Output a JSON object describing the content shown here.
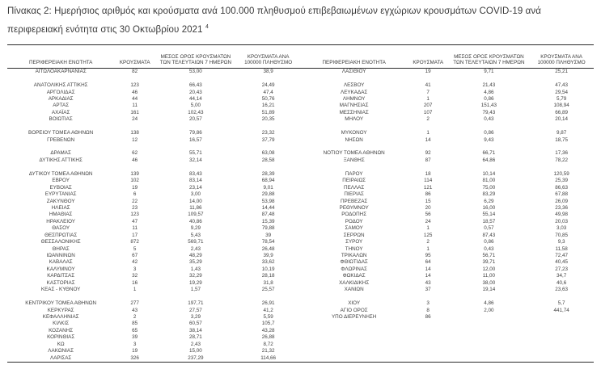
{
  "header": {
    "title": "Πίνακας 2:  Ημερήσιος αριθμός και κρούσματα ανά 100.000 πληθυσμού επιβεβαιωμένων εγχώριων κρουσμάτων COVID-19 ανά περιφερειακή ενότητα στις 30 Οκτωβρίου 2021",
    "footnote_marker": "4"
  },
  "columns": [
    "ΠΕΡΙΦΕΡΕΙΑΚΗ ΕΝΟΤΗΤΑ",
    "ΚΡΟΥΣΜΑΤΑ",
    "ΜΕΣΟΣ ΟΡΟΣ ΚΡΟΥΣΜΑΤΩΝ ΤΩΝ ΤΕΛΕΥΤΑΙΩΝ 7 ΗΜΕΡΩΝ",
    "ΚΡΟΥΣΜΑΤΑ ΑΝΑ 100000 ΠΛΗΘΥΣΜΟ"
  ],
  "tables": [
    {
      "rows": [
        [
          "ΑΙΤΩΛΟΑΚΑΡΝΑΝΙΑΣ",
          "82",
          "53,00",
          "38,9"
        ],
        null,
        [
          "ΑΝΑΤΟΛΙΚΗΣ ΑΤΤΙΚΗΣ",
          "123",
          "66,43",
          "24,49"
        ],
        [
          "ΑΡΓΟΛΙΔΑΣ",
          "46",
          "20,43",
          "47,4"
        ],
        [
          "ΑΡΚΑΔΙΑΣ",
          "44",
          "44,14",
          "50,76"
        ],
        [
          "ΑΡΤΑΣ",
          "11",
          "5,00",
          "16,21"
        ],
        [
          "ΑΧΑΪΑΣ",
          "161",
          "102,43",
          "51,89"
        ],
        [
          "ΒΟΙΩΤΙΑΣ",
          "24",
          "20,57",
          "20,35"
        ],
        null,
        [
          "ΒΟΡΕΙΟΥ ΤΟΜΕΑ ΑΘΗΝΩΝ",
          "138",
          "79,86",
          "23,32"
        ],
        [
          "ΓΡΕΒΕΝΩΝ",
          "12",
          "16,57",
          "37,79"
        ],
        null,
        [
          "ΔΡΑΜΑΣ",
          "62",
          "55,71",
          "63,08"
        ],
        [
          "ΔΥΤΙΚΗΣ ΑΤΤΙΚΗΣ",
          "46",
          "32,14",
          "28,58"
        ],
        null,
        [
          "ΔΥΤΙΚΟΥ ΤΟΜΕΑ ΑΘΗΝΩΝ",
          "139",
          "83,43",
          "28,39"
        ],
        [
          "ΕΒΡΟΥ",
          "102",
          "83,14",
          "68,94"
        ],
        [
          "ΕΥΒΟΙΑΣ",
          "19",
          "23,14",
          "9,01"
        ],
        [
          "ΕΥΡΥΤΑΝΙΑΣ",
          "6",
          "3,00",
          "29,88"
        ],
        [
          "ΖΑΚΥΝΘΟΥ",
          "22",
          "14,00",
          "53,98"
        ],
        [
          "ΗΛΕΙΑΣ",
          "23",
          "11,86",
          "14,44"
        ],
        [
          "ΗΜΑΘΙΑΣ",
          "123",
          "109,57",
          "87,48"
        ],
        [
          "ΗΡΑΚΛΕΙΟΥ",
          "47",
          "40,86",
          "15,39"
        ],
        [
          "ΘΑΣΟΥ",
          "11",
          "9,29",
          "79,88"
        ],
        [
          "ΘΕΣΠΡΩΤΙΑΣ",
          "17",
          "5,43",
          "39"
        ],
        [
          "ΘΕΣΣΑΛΟΝΙΚΗΣ",
          "872",
          "569,71",
          "78,54"
        ],
        [
          "ΘΗΡΑΣ",
          "5",
          "2,43",
          "26,48"
        ],
        [
          "ΙΩΑΝΝΙΝΩΝ",
          "67",
          "48,29",
          "39,9"
        ],
        [
          "ΚΑΒΑΛΑΣ",
          "42",
          "35,29",
          "33,62"
        ],
        [
          "ΚΑΛΥΜΝΟΥ",
          "3",
          "1,43",
          "10,19"
        ],
        [
          "ΚΑΡΔΙΤΣΑΣ",
          "32",
          "32,29",
          "28,18"
        ],
        [
          "ΚΑΣΤΟΡΙΑΣ",
          "16",
          "19,29",
          "31,8"
        ],
        [
          "ΚΕΑΣ - ΚΥΘΝΟΥ",
          "1",
          "1,57",
          "25,57"
        ],
        null,
        [
          "ΚΕΝΤΡΙΚΟΥ ΤΟΜΕΑ ΑΘΗΝΩΝ",
          "277",
          "197,71",
          "26,91"
        ],
        [
          "ΚΕΡΚΥΡΑΣ",
          "43",
          "27,57",
          "41,2"
        ],
        [
          "ΚΕΦΑΛΛΗΝΙΑΣ",
          "2",
          "3,29",
          "5,59"
        ],
        [
          "ΚΙΛΚΙΣ",
          "85",
          "60,57",
          "105,7"
        ],
        [
          "ΚΟΖΑΝΗΣ",
          "65",
          "38,14",
          "43,28"
        ],
        [
          "ΚΟΡΙΝΘΙΑΣ",
          "39",
          "28,71",
          "26,88"
        ],
        [
          "ΚΩ",
          "3",
          "2,43",
          "8,72"
        ],
        [
          "ΛΑΚΩΝΙΑΣ",
          "19",
          "15,00",
          "21,32"
        ],
        [
          "ΛΑΡΙΣΑΣ",
          "326",
          "237,29",
          "114,66"
        ]
      ]
    },
    {
      "rows": [
        [
          "ΛΑΣΙΘΙΟΥ",
          "19",
          "9,71",
          "25,21"
        ],
        null,
        [
          "ΛΕΣΒΟΥ",
          "41",
          "21,43",
          "47,43"
        ],
        [
          "ΛΕΥΚΑΔΑΣ",
          "7",
          "4,86",
          "29,54"
        ],
        [
          "ΛΗΜΝΟΥ",
          "1",
          "0,86",
          "5,79"
        ],
        [
          "ΜΑΓΝΗΣΙΑΣ",
          "207",
          "151,43",
          "108,94"
        ],
        [
          "ΜΕΣΣΗΝΙΑΣ",
          "107",
          "79,43",
          "66,89"
        ],
        [
          "ΜΗΛΟΥ",
          "2",
          "0,43",
          "20,14"
        ],
        null,
        [
          "ΜΥΚΟΝΟΥ",
          "1",
          "0,86",
          "9,87"
        ],
        [
          "ΝΗΣΩΝ",
          "14",
          "9,43",
          "18,75"
        ],
        null,
        [
          "ΝΟΤΙΟΥ ΤΟΜΕΑ ΑΘΗΝΩΝ",
          "92",
          "66,71",
          "17,36"
        ],
        [
          "ΞΑΝΘΗΣ",
          "87",
          "64,86",
          "78,22"
        ],
        null,
        [
          "ΠΑΡΟΥ",
          "18",
          "10,14",
          "120,59"
        ],
        [
          "ΠΕΙΡΑΙΩΣ",
          "114",
          "81,00",
          "25,39"
        ],
        [
          "ΠΕΛΛΑΣ",
          "121",
          "75,00",
          "86,63"
        ],
        [
          "ΠΙΕΡΙΑΣ",
          "86",
          "83,29",
          "67,88"
        ],
        [
          "ΠΡΕΒΕΖΑΣ",
          "15",
          "6,29",
          "26,09"
        ],
        [
          "ΡΕΘΥΜΝΟΥ",
          "20",
          "16,00",
          "23,36"
        ],
        [
          "ΡΟΔΟΠΗΣ",
          "56",
          "55,14",
          "49,98"
        ],
        [
          "ΡΟΔΟΥ",
          "24",
          "18,57",
          "20,03"
        ],
        [
          "ΣΑΜΟΥ",
          "1",
          "0,57",
          "3,03"
        ],
        [
          "ΣΕΡΡΩΝ",
          "125",
          "87,43",
          "70,85"
        ],
        [
          "ΣΥΡΟΥ",
          "2",
          "0,86",
          "9,3"
        ],
        [
          "ΤΗΝΟΥ",
          "1",
          "0,43",
          "11,58"
        ],
        [
          "ΤΡΙΚΑΛΩΝ",
          "95",
          "56,71",
          "72,47"
        ],
        [
          "ΦΘΙΩΤΙΔΑΣ",
          "64",
          "39,71",
          "40,45"
        ],
        [
          "ΦΛΩΡΙΝΑΣ",
          "14",
          "12,00",
          "27,23"
        ],
        [
          "ΦΩΚΙΔΑΣ",
          "14",
          "11,00",
          "34,7"
        ],
        [
          "ΧΑΛΚΙΔΙΚΗΣ",
          "43",
          "38,00",
          "40,6"
        ],
        [
          "ΧΑΝΙΩΝ",
          "37",
          "19,14",
          "23,63"
        ],
        null,
        [
          "ΧΙΟΥ",
          "3",
          "4,86",
          "5,7"
        ],
        [
          "ΑΓΙΟ ΟΡΟΣ",
          "8",
          "2,00",
          "441,74"
        ],
        [
          "ΥΠΟ ΔΙΕΡΕΥΝΗΣΗ",
          "86",
          "",
          ""
        ]
      ]
    }
  ]
}
